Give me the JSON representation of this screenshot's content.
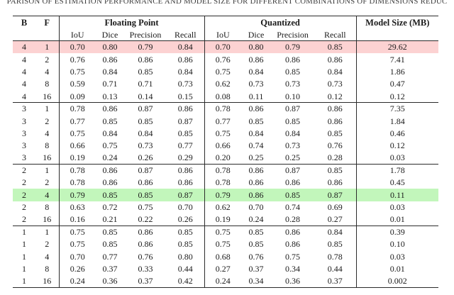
{
  "caption": {
    "visible_text": "PARISON OF ESTIMATION PERFORMANCE AND MODEL SIZE FOR DIFFERENT COMBINATIONS OF DIMENSIONS REDUC"
  },
  "colors": {
    "highlight_pink": "#fcd2d2",
    "highlight_green": "#c2f6bb",
    "rule": "#2b2b2b"
  },
  "table": {
    "header": {
      "b": "B",
      "f": "F",
      "group_floating_point": "Floating Point",
      "group_quantized": "Quantized",
      "model_size": "Model Size (MB)",
      "metrics": [
        "IoU",
        "Dice",
        "Precision",
        "Recall"
      ]
    },
    "rows": [
      {
        "b": "4",
        "f": "1",
        "fp": [
          "0.70",
          "0.80",
          "0.79",
          "0.84"
        ],
        "q": [
          "0.70",
          "0.80",
          "0.79",
          "0.85"
        ],
        "size": "29.62",
        "highlight": "pink",
        "group_start": false
      },
      {
        "b": "4",
        "f": "2",
        "fp": [
          "0.76",
          "0.86",
          "0.86",
          "0.86"
        ],
        "q": [
          "0.76",
          "0.86",
          "0.86",
          "0.86"
        ],
        "size": "7.41",
        "highlight": null,
        "group_start": false
      },
      {
        "b": "4",
        "f": "4",
        "fp": [
          "0.75",
          "0.84",
          "0.85",
          "0.84"
        ],
        "q": [
          "0.75",
          "0.84",
          "0.85",
          "0.84"
        ],
        "size": "1.86",
        "highlight": null,
        "group_start": false
      },
      {
        "b": "4",
        "f": "8",
        "fp": [
          "0.59",
          "0.71",
          "0.71",
          "0.73"
        ],
        "q": [
          "0.62",
          "0.73",
          "0.73",
          "0.73"
        ],
        "size": "0.47",
        "highlight": null,
        "group_start": false
      },
      {
        "b": "4",
        "f": "16",
        "fp": [
          "0.09",
          "0.13",
          "0.14",
          "0.15"
        ],
        "q": [
          "0.08",
          "0.11",
          "0.10",
          "0.12"
        ],
        "size": "0.12",
        "highlight": null,
        "group_start": false
      },
      {
        "b": "3",
        "f": "1",
        "fp": [
          "0.78",
          "0.86",
          "0.87",
          "0.86"
        ],
        "q": [
          "0.78",
          "0.86",
          "0.87",
          "0.86"
        ],
        "size": "7.35",
        "highlight": null,
        "group_start": true
      },
      {
        "b": "3",
        "f": "2",
        "fp": [
          "0.77",
          "0.85",
          "0.85",
          "0.87"
        ],
        "q": [
          "0.77",
          "0.85",
          "0.85",
          "0.86"
        ],
        "size": "1.84",
        "highlight": null,
        "group_start": false
      },
      {
        "b": "3",
        "f": "4",
        "fp": [
          "0.75",
          "0.84",
          "0.84",
          "0.85"
        ],
        "q": [
          "0.75",
          "0.84",
          "0.84",
          "0.85"
        ],
        "size": "0.46",
        "highlight": null,
        "group_start": false
      },
      {
        "b": "3",
        "f": "8",
        "fp": [
          "0.66",
          "0.75",
          "0.73",
          "0.77"
        ],
        "q": [
          "0.66",
          "0.74",
          "0.73",
          "0.76"
        ],
        "size": "0.12",
        "highlight": null,
        "group_start": false
      },
      {
        "b": "3",
        "f": "16",
        "fp": [
          "0.19",
          "0.24",
          "0.26",
          "0.29"
        ],
        "q": [
          "0.20",
          "0.25",
          "0.25",
          "0.28"
        ],
        "size": "0.03",
        "highlight": null,
        "group_start": false
      },
      {
        "b": "2",
        "f": "1",
        "fp": [
          "0.78",
          "0.86",
          "0.87",
          "0.86"
        ],
        "q": [
          "0.78",
          "0.86",
          "0.87",
          "0.85"
        ],
        "size": "1.78",
        "highlight": null,
        "group_start": true
      },
      {
        "b": "2",
        "f": "2",
        "fp": [
          "0.78",
          "0.86",
          "0.86",
          "0.86"
        ],
        "q": [
          "0.78",
          "0.86",
          "0.86",
          "0.86"
        ],
        "size": "0.45",
        "highlight": null,
        "group_start": false
      },
      {
        "b": "2",
        "f": "4",
        "fp": [
          "0.79",
          "0.85",
          "0.85",
          "0.87"
        ],
        "q": [
          "0.79",
          "0.86",
          "0.85",
          "0.87"
        ],
        "size": "0.11",
        "highlight": "green",
        "group_start": false
      },
      {
        "b": "2",
        "f": "8",
        "fp": [
          "0.63",
          "0.72",
          "0.75",
          "0.70"
        ],
        "q": [
          "0.62",
          "0.70",
          "0.74",
          "0.69"
        ],
        "size": "0.03",
        "highlight": null,
        "group_start": false
      },
      {
        "b": "2",
        "f": "16",
        "fp": [
          "0.16",
          "0.21",
          "0.22",
          "0.26"
        ],
        "q": [
          "0.19",
          "0.24",
          "0.28",
          "0.27"
        ],
        "size": "0.01",
        "highlight": null,
        "group_start": false
      },
      {
        "b": "1",
        "f": "1",
        "fp": [
          "0.75",
          "0.85",
          "0.86",
          "0.85"
        ],
        "q": [
          "0.75",
          "0.85",
          "0.86",
          "0.84"
        ],
        "size": "0.39",
        "highlight": null,
        "group_start": true
      },
      {
        "b": "1",
        "f": "2",
        "fp": [
          "0.75",
          "0.85",
          "0.86",
          "0.85"
        ],
        "q": [
          "0.75",
          "0.85",
          "0.86",
          "0.85"
        ],
        "size": "0.10",
        "highlight": null,
        "group_start": false
      },
      {
        "b": "1",
        "f": "4",
        "fp": [
          "0.70",
          "0.77",
          "0.76",
          "0.80"
        ],
        "q": [
          "0.68",
          "0.76",
          "0.75",
          "0.78"
        ],
        "size": "0.03",
        "highlight": null,
        "group_start": false
      },
      {
        "b": "1",
        "f": "8",
        "fp": [
          "0.26",
          "0.37",
          "0.33",
          "0.44"
        ],
        "q": [
          "0.27",
          "0.37",
          "0.34",
          "0.44"
        ],
        "size": "0.01",
        "highlight": null,
        "group_start": false
      },
      {
        "b": "1",
        "f": "16",
        "fp": [
          "0.24",
          "0.36",
          "0.37",
          "0.42"
        ],
        "q": [
          "0.24",
          "0.34",
          "0.36",
          "0.37"
        ],
        "size": "0.002",
        "highlight": null,
        "group_start": false
      }
    ]
  }
}
